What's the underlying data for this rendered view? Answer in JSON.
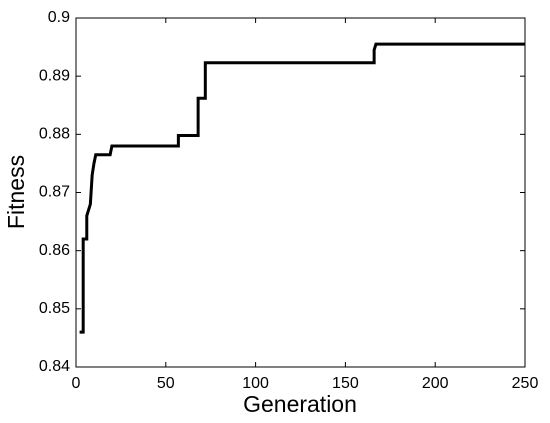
{
  "chart_data": {
    "type": "line",
    "xlabel": "Generation",
    "ylabel": "Fitness",
    "x": [
      2,
      4,
      4,
      6,
      6,
      7,
      8,
      9,
      10,
      11,
      12,
      19,
      20,
      57,
      57,
      68,
      68,
      72,
      72,
      74,
      166,
      166,
      167,
      250
    ],
    "series": [
      {
        "color": "#000000",
        "values": [
          0.846,
          0.846,
          0.862,
          0.862,
          0.866,
          0.867,
          0.868,
          0.873,
          0.875,
          0.8765,
          0.8765,
          0.8765,
          0.878,
          0.878,
          0.8798,
          0.8798,
          0.8862,
          0.8862,
          0.8923,
          0.8923,
          0.8923,
          0.8945,
          0.8955,
          0.8955
        ]
      }
    ],
    "xlim": [
      0,
      250
    ],
    "xticks": [
      0,
      50,
      100,
      150,
      200,
      250
    ],
    "ylim": [
      0.84,
      0.9
    ],
    "yticks": [
      {
        "value": 0.84,
        "label": "0.84"
      },
      {
        "value": 0.85,
        "label": "0.85"
      },
      {
        "value": 0.86,
        "label": "0.86"
      },
      {
        "value": 0.87,
        "label": "0.87"
      },
      {
        "value": 0.88,
        "label": "0.88"
      },
      {
        "value": 0.89,
        "label": "0.89"
      },
      0.9
    ],
    "grid": false
  }
}
